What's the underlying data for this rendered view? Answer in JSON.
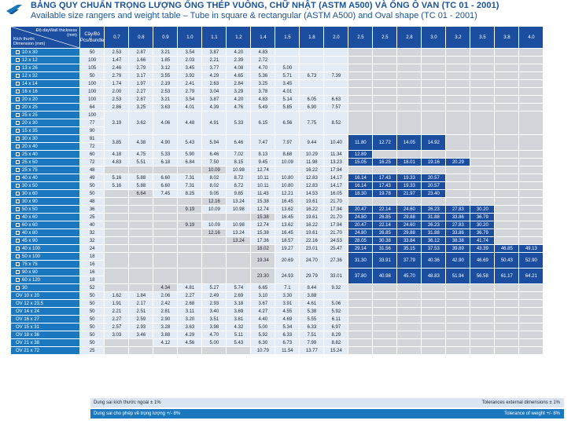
{
  "title_vi": "BẢNG QUY CHUẨN TRỌNG LƯỢNG ỐNG THÉP VUÔNG, CHỮ NHẬT (ASTM A500) VÀ ỐNG Ô VAN (TC 01 - 2001)",
  "title_en": "Available size rangers and weight table – Tube in square & rectangular (ASTM A500) and Oval shape (TC 01 - 2001)",
  "header": {
    "thickness_vi": "Độ dày",
    "thickness_en": "Wall thickness",
    "thickness_unit": "(mm)",
    "dim_vi": "Kích thước",
    "dim_en": "Dimension (mm)",
    "pcs_vi": "Cây/Bó",
    "pcs_en": "Pcs/Bundle"
  },
  "thicknesses": [
    "0.7",
    "0.8",
    "0.9",
    "1.0",
    "1.1",
    "1.2",
    "1.4",
    "1.5",
    "1.8",
    "2.0",
    "2.5",
    "2.5",
    "2.8",
    "3.0",
    "3.2",
    "3.5",
    "3.8",
    "4.0"
  ],
  "groups": [
    {
      "sizes": [
        "10 x 30"
      ],
      "pcs": [
        "50"
      ],
      "values": [
        "2.53",
        "2.87",
        "3.21",
        "3.54",
        "3.87",
        "4.20",
        "4.83",
        "",
        "",
        "",
        "",
        "",
        "",
        "",
        "",
        "",
        "",
        ""
      ],
      "n": 10
    },
    {
      "sizes": [
        "12 x 12"
      ],
      "pcs": [
        "100"
      ],
      "values": [
        "1.47",
        "1.66",
        "1.85",
        "2.03",
        "2.21",
        "2.39",
        "2.72",
        "",
        "",
        "",
        "",
        "",
        "",
        "",
        "",
        "",
        "",
        ""
      ],
      "n": 10
    },
    {
      "sizes": [
        "13 x 26"
      ],
      "pcs": [
        "105"
      ],
      "values": [
        "2.46",
        "2.79",
        "3.12",
        "3.45",
        "3.77",
        "4.08",
        "4.70",
        "5.00",
        "",
        "",
        "",
        "",
        "",
        "",
        "",
        "",
        "",
        ""
      ],
      "n": 10
    },
    {
      "sizes": [
        "12 x 32"
      ],
      "pcs": [
        "50"
      ],
      "values": [
        "2.79",
        "3.17",
        "3.55",
        "3.92",
        "4.29",
        "4.65",
        "5.36",
        "5.71",
        "6.73",
        "7.39",
        "",
        "",
        "",
        "",
        "",
        "",
        "",
        ""
      ],
      "n": 10
    },
    {
      "sizes": [
        "14 x 14"
      ],
      "pcs": [
        "100"
      ],
      "values": [
        "1.74",
        "1.97",
        "2.19",
        "2.41",
        "2.63",
        "2.84",
        "3.25",
        "3.45",
        "",
        "",
        "",
        "",
        "",
        "",
        "",
        "",
        "",
        ""
      ],
      "n": 10
    },
    {
      "sizes": [
        "16 x 16"
      ],
      "pcs": [
        "100"
      ],
      "values": [
        "2.00",
        "2.27",
        "2.53",
        "2.79",
        "3.04",
        "3.29",
        "3.78",
        "4.01",
        "",
        "",
        "",
        "",
        "",
        "",
        "",
        "",
        "",
        ""
      ],
      "n": 10
    },
    {
      "sizes": [
        "20 x 20"
      ],
      "pcs": [
        "100"
      ],
      "values": [
        "2.53",
        "2.87",
        "3.21",
        "3.54",
        "3.87",
        "4.20",
        "4.83",
        "5.14",
        "6.05",
        "6.63",
        "",
        "",
        "",
        "",
        "",
        "",
        "",
        ""
      ],
      "n": 10
    },
    {
      "sizes": [
        "20 x 25"
      ],
      "pcs": [
        "64"
      ],
      "values": [
        "2.86",
        "3.25",
        "3.63",
        "4.01",
        "4.39",
        "4.76",
        "5.49",
        "5.85",
        "6.90",
        "7.57",
        "",
        "",
        "",
        "",
        "",
        "",
        "",
        ""
      ],
      "n": 10
    },
    {
      "sizes": [
        "25 x 25",
        "20 x 30",
        "15 x 35"
      ],
      "pcs": [
        "100",
        "77",
        "90"
      ],
      "values": [
        "3.19",
        "3.62",
        "4.06",
        "4.48",
        "4.91",
        "5.33",
        "6.15",
        "6.56",
        "7.75",
        "8.52",
        "",
        "",
        "",
        "",
        "",
        "",
        "",
        ""
      ],
      "n": 10
    },
    {
      "sizes": [
        "30 x 30",
        "20 x 40"
      ],
      "pcs": [
        "81",
        "72"
      ],
      "values": [
        "3.85",
        "4.38",
        "4.90",
        "5.43",
        "5.94",
        "6.46",
        "7.47",
        "7.97",
        "9.44",
        "10.40",
        "11.80",
        "12.72",
        "14.05",
        "14.92",
        "",
        "",
        "",
        ""
      ],
      "n": 14
    },
    {
      "sizes": [
        "25 x 40"
      ],
      "pcs": [
        "60"
      ],
      "values": [
        "4.18",
        "4.75",
        "5.33",
        "5.90",
        "6.46",
        "7.02",
        "8.13",
        "8.68",
        "10.29",
        "11.34",
        "12.89",
        "",
        "",
        "",
        "",
        "",
        "",
        ""
      ],
      "n": 11
    },
    {
      "sizes": [
        "25 x 50"
      ],
      "pcs": [
        "72"
      ],
      "values": [
        "4.83",
        "5.51",
        "6.18",
        "6.84",
        "7.50",
        "8.15",
        "9.45",
        "10.09",
        "11.98",
        "13.23",
        "15.05",
        "16.25",
        "18.01",
        "19.16",
        "20.29",
        "",
        "",
        ""
      ],
      "n": 15
    },
    {
      "sizes": [
        "25 x 75"
      ],
      "pcs": [
        "48"
      ],
      "values": [
        "",
        "",
        "",
        "",
        "10.09",
        "10.98",
        "12.74",
        "",
        "16.22",
        "17.94",
        "",
        "",
        "",
        "",
        "",
        "",
        "",
        ""
      ],
      "n": 10,
      "s": 5
    },
    {
      "sizes": [
        "40 x 40"
      ],
      "pcs": [
        "49"
      ],
      "values": [
        "5.16",
        "5.88",
        "6.60",
        "7.31",
        "8.02",
        "8.72",
        "10.11",
        "10.80",
        "12.83",
        "14.17",
        "16.14",
        "17.43",
        "19.33",
        "20.57",
        "",
        "",
        "",
        ""
      ],
      "n": 14
    },
    {
      "sizes": [
        "30 x 50"
      ],
      "pcs": [
        "50"
      ],
      "values": [
        "5.16",
        "5.88",
        "6.60",
        "7.31",
        "8.02",
        "8.72",
        "10.11",
        "10.80",
        "12.83",
        "14.17",
        "16.14",
        "17.43",
        "19.33",
        "20.57",
        "",
        "",
        "",
        ""
      ],
      "n": 14
    },
    {
      "sizes": [
        "30 x 60"
      ],
      "pcs": [
        "50"
      ],
      "values": [
        "",
        "6.64",
        "7.45",
        "8.25",
        "9.05",
        "9.85",
        "11.43",
        "12.21",
        "14.53",
        "16.05",
        "18.30",
        "19.78",
        "21.97",
        "23.40",
        "",
        "",
        "",
        ""
      ],
      "n": 14,
      "s": 2
    },
    {
      "sizes": [
        "30 x 90"
      ],
      "pcs": [
        "48"
      ],
      "values": [
        "",
        "",
        "",
        "",
        "12.16",
        "13.24",
        "15.38",
        "16.45",
        "19.61",
        "21.70",
        "",
        "",
        "",
        "",
        "",
        "",
        "",
        ""
      ],
      "n": 10,
      "s": 5
    },
    {
      "sizes": [
        "50 x 50"
      ],
      "pcs": [
        "36"
      ],
      "values": [
        "",
        "",
        "",
        "9.19",
        "10.09",
        "10.98",
        "12.74",
        "13.62",
        "16.22",
        "17.94",
        "20.47",
        "22.14",
        "24.60",
        "26.23",
        "27.83",
        "30.20",
        "",
        ""
      ],
      "n": 16,
      "s": 4
    },
    {
      "sizes": [
        "40 x 60"
      ],
      "pcs": [
        "25"
      ],
      "values": [
        "",
        "",
        "",
        "",
        "",
        "",
        "15.38",
        "16.45",
        "19.61",
        "21.70",
        "24.80",
        "26.85",
        "29.88",
        "31.88",
        "33.86",
        "36.79",
        "",
        ""
      ],
      "n": 16,
      "s": 7
    },
    {
      "sizes": [
        "60 x 60"
      ],
      "pcs": [
        "40"
      ],
      "values": [
        "",
        "",
        "",
        "9.19",
        "10.09",
        "10.98",
        "12.74",
        "13.62",
        "16.22",
        "17.94",
        "20.47",
        "22.14",
        "24.60",
        "26.23",
        "27.83",
        "30.20",
        "",
        ""
      ],
      "n": 16,
      "s": 4
    },
    {
      "sizes": [
        "40 x 80"
      ],
      "pcs": [
        "32"
      ],
      "values": [
        "",
        "",
        "",
        "",
        "12.16",
        "13.24",
        "15.38",
        "16.45",
        "19.61",
        "21.70",
        "24.80",
        "26.85",
        "29.88",
        "31.88",
        "33.86",
        "36.79",
        "",
        ""
      ],
      "n": 16,
      "s": 5
    },
    {
      "sizes": [
        "45 x 90"
      ],
      "pcs": [
        "32"
      ],
      "values": [
        "",
        "",
        "",
        "",
        "",
        "13.24",
        "17.36",
        "18.57",
        "22.16",
        "24.53",
        "28.05",
        "30.38",
        "33.84",
        "36.12",
        "38.38",
        "41.74",
        "",
        ""
      ],
      "n": 16,
      "s": 6
    },
    {
      "sizes": [
        "40 x 100"
      ],
      "pcs": [
        "24"
      ],
      "values": [
        "",
        "",
        "",
        "",
        "",
        "",
        "18.02",
        "19.27",
        "23.01",
        "25.47",
        "29.14",
        "31.56",
        "35.15",
        "37.53",
        "39.89",
        "43.39",
        "46.85",
        "49.13"
      ],
      "n": 18,
      "s": 7
    },
    {
      "sizes": [
        "50 x 100",
        "75 x 75"
      ],
      "pcs": [
        "18",
        "16"
      ],
      "values": [
        "",
        "",
        "",
        "",
        "",
        "",
        "19.34",
        "20.69",
        "24.70",
        "27.36",
        "31.30",
        "33.91",
        "37.79",
        "40.36",
        "42.90",
        "46.69",
        "50.43",
        "52.90"
      ],
      "n": 18,
      "s": 7
    },
    {
      "sizes": [
        "90 x 90",
        "60 x 120"
      ],
      "pcs": [
        "16",
        "18"
      ],
      "values": [
        "",
        "",
        "",
        "",
        "",
        "",
        "23.30",
        "24.93",
        "29.79",
        "33.01",
        "37.80",
        "40.98",
        "45.70",
        "48.83",
        "51.94",
        "56.58",
        "61.17",
        "64.21"
      ],
      "n": 18,
      "s": 7
    },
    {
      "sizes": [
        "30"
      ],
      "pcs": [
        "52"
      ],
      "values": [
        "",
        "",
        "4.34",
        "4.81",
        "5.27",
        "5.74",
        "6.65",
        "7.1",
        "8.44",
        "9.32",
        "",
        "",
        "",
        "",
        "",
        "",
        "",
        ""
      ],
      "n": 10,
      "s": 3
    },
    {
      "sizes": [
        "OV 10 x 20"
      ],
      "pcs": [
        "50"
      ],
      "values": [
        "1.62",
        "1.84",
        "2.06",
        "2.27",
        "2.49",
        "2.69",
        "3.10",
        "3.30",
        "3.88",
        "",
        "",
        "",
        "",
        "",
        "",
        "",
        "",
        ""
      ],
      "n": 10,
      "ov": 1
    },
    {
      "sizes": [
        "OV 12 x 23.5"
      ],
      "pcs": [
        "50"
      ],
      "values": [
        "1.91",
        "2.17",
        "2.42",
        "2.68",
        "2.93",
        "3.18",
        "3.67",
        "3.91",
        "4.61",
        "5.06",
        "",
        "",
        "",
        "",
        "",
        "",
        "",
        ""
      ],
      "n": 10,
      "ov": 1
    },
    {
      "sizes": [
        "OV 14 x 24"
      ],
      "pcs": [
        "50"
      ],
      "values": [
        "2.21",
        "2.51",
        "2.81",
        "3.11",
        "3.40",
        "3.69",
        "4.27",
        "4.55",
        "5.38",
        "5.92",
        "",
        "",
        "",
        "",
        "",
        "",
        "",
        ""
      ],
      "n": 10,
      "ov": 1
    },
    {
      "sizes": [
        "OV 16 x 27"
      ],
      "pcs": [
        "50"
      ],
      "values": [
        "2.27",
        "2.59",
        "2.90",
        "3.20",
        "3.51",
        "3.81",
        "4.40",
        "4.69",
        "5.55",
        "6.11",
        "",
        "",
        "",
        "",
        "",
        "",
        "",
        ""
      ],
      "n": 10,
      "ov": 1
    },
    {
      "sizes": [
        "OV 15 x 31"
      ],
      "pcs": [
        "50"
      ],
      "values": [
        "2.57",
        "2.93",
        "3.28",
        "3.63",
        "3.98",
        "4.32",
        "5.00",
        "5.34",
        "6.33",
        "6.97",
        "",
        "",
        "",
        "",
        "",
        "",
        "",
        ""
      ],
      "n": 10,
      "ov": 1
    },
    {
      "sizes": [
        "OV 18 x 36"
      ],
      "pcs": [
        "50"
      ],
      "values": [
        "3.03",
        "3.46",
        "3.88",
        "4.29",
        "4.70",
        "5.11",
        "5.92",
        "6.33",
        "7.51",
        "8.29",
        "",
        "",
        "",
        "",
        "",
        "",
        "",
        ""
      ],
      "n": 10,
      "ov": 1
    },
    {
      "sizes": [
        "OV 21 x 38"
      ],
      "pcs": [
        "50"
      ],
      "values": [
        "",
        "",
        "4.12",
        "4.56",
        "5.00",
        "5.43",
        "6.30",
        "6.73",
        "7.99",
        "8.82",
        "",
        "",
        "",
        "",
        "",
        "",
        "",
        ""
      ],
      "n": 10,
      "s": 2,
      "ov": 1
    },
    {
      "sizes": [
        "OV 21 x 72"
      ],
      "pcs": [
        "25"
      ],
      "values": [
        "",
        "",
        "",
        "",
        "",
        "",
        "10.79",
        "11.54",
        "13.77",
        "15.24",
        "",
        "",
        "",
        "",
        "",
        "",
        "",
        ""
      ],
      "n": 10,
      "s": 6,
      "ov": 1
    }
  ],
  "tolerance": {
    "dim_vi": "Dung sai kích thước ngoài ± 1%",
    "dim_en": "Tolerances external dimensions ± 1%",
    "weight_vi": "Dung sai cho phép về trọng lượng +/- 8%",
    "weight_en": "Tolerance of weight +/- 8%"
  },
  "colors": {
    "header": "#1c4ea0",
    "label": "#1c78be",
    "light": "#e2ebf6",
    "gray": "#d2d5da",
    "title": "#1a5296"
  }
}
